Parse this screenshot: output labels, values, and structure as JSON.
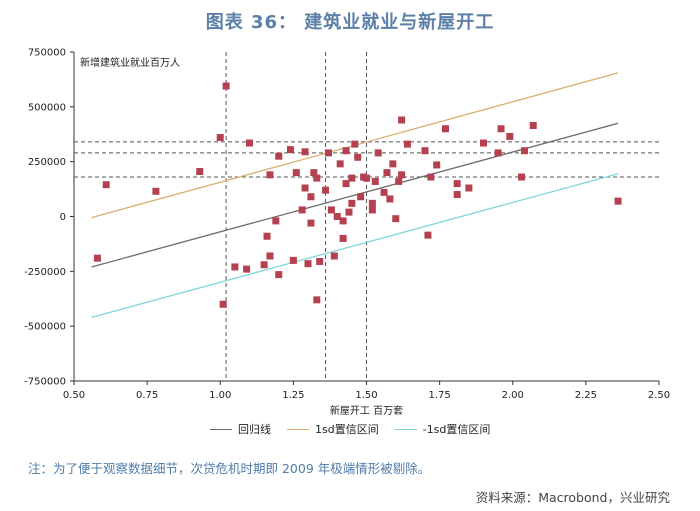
{
  "title": "图表 36：  建筑业就业与新屋开工",
  "note": "注：为了便于观察数据细节，次贷危机时期即 2009 年极端情形被剔除。",
  "source": "资料来源：Macrobond，兴业研究",
  "chart_data": {
    "type": "scatter",
    "title": "",
    "xlabel": "新屋开工 百万套",
    "ylabel": "新增建筑业就业百万人",
    "xlim": [
      0.5,
      2.5
    ],
    "ylim": [
      -750000,
      750000
    ],
    "xticks": [
      "0.50",
      "0.75",
      "1.00",
      "1.25",
      "1.50",
      "1.75",
      "2.00",
      "2.25",
      "2.50"
    ],
    "yticks": [
      "750000",
      "500000",
      "250000",
      "0",
      "-250000",
      "-500000",
      "-750000"
    ],
    "grid": false,
    "marker_color": "#b5404f",
    "lines": [
      {
        "name": "回归线",
        "color": "#6b6b6b",
        "x": [
          0.56,
          2.36
        ],
        "y": [
          -230000,
          425000
        ]
      },
      {
        "name": "1sd置信区间",
        "color": "#d9b070",
        "x": [
          0.56,
          2.36
        ],
        "y": [
          -5000,
          655000
        ]
      },
      {
        "name": "-1sd置信区间",
        "color": "#7fd6d9",
        "x": [
          0.56,
          2.36
        ],
        "y": [
          -460000,
          195000
        ]
      }
    ],
    "vlines": [
      1.02,
      1.36,
      1.5
    ],
    "hlines": [
      340000,
      290000,
      180000
    ],
    "points": [
      [
        0.58,
        -190000
      ],
      [
        0.61,
        145000
      ],
      [
        0.78,
        115000
      ],
      [
        0.93,
        205000
      ],
      [
        1.0,
        360000
      ],
      [
        1.01,
        -400000
      ],
      [
        1.02,
        595000
      ],
      [
        1.05,
        -230000
      ],
      [
        1.09,
        -240000
      ],
      [
        1.1,
        335000
      ],
      [
        1.15,
        -220000
      ],
      [
        1.16,
        -90000
      ],
      [
        1.17,
        190000
      ],
      [
        1.17,
        -180000
      ],
      [
        1.19,
        -20000
      ],
      [
        1.2,
        275000
      ],
      [
        1.2,
        -265000
      ],
      [
        1.24,
        305000
      ],
      [
        1.25,
        -200000
      ],
      [
        1.26,
        200000
      ],
      [
        1.28,
        30000
      ],
      [
        1.29,
        295000
      ],
      [
        1.29,
        130000
      ],
      [
        1.3,
        -215000
      ],
      [
        1.31,
        90000
      ],
      [
        1.31,
        -30000
      ],
      [
        1.32,
        200000
      ],
      [
        1.33,
        -380000
      ],
      [
        1.33,
        175000
      ],
      [
        1.34,
        -205000
      ],
      [
        1.36,
        120000
      ],
      [
        1.37,
        290000
      ],
      [
        1.38,
        30000
      ],
      [
        1.39,
        -180000
      ],
      [
        1.4,
        0
      ],
      [
        1.41,
        240000
      ],
      [
        1.42,
        -100000
      ],
      [
        1.42,
        -20000
      ],
      [
        1.43,
        150000
      ],
      [
        1.43,
        300000
      ],
      [
        1.44,
        20000
      ],
      [
        1.45,
        60000
      ],
      [
        1.45,
        175000
      ],
      [
        1.46,
        330000
      ],
      [
        1.47,
        270000
      ],
      [
        1.48,
        90000
      ],
      [
        1.49,
        180000
      ],
      [
        1.5,
        175000
      ],
      [
        1.52,
        30000
      ],
      [
        1.52,
        60000
      ],
      [
        1.53,
        160000
      ],
      [
        1.54,
        290000
      ],
      [
        1.56,
        110000
      ],
      [
        1.57,
        200000
      ],
      [
        1.58,
        80000
      ],
      [
        1.59,
        240000
      ],
      [
        1.6,
        -10000
      ],
      [
        1.61,
        160000
      ],
      [
        1.62,
        440000
      ],
      [
        1.62,
        190000
      ],
      [
        1.64,
        330000
      ],
      [
        1.7,
        300000
      ],
      [
        1.71,
        -85000
      ],
      [
        1.72,
        180000
      ],
      [
        1.74,
        235000
      ],
      [
        1.77,
        400000
      ],
      [
        1.81,
        100000
      ],
      [
        1.81,
        150000
      ],
      [
        1.85,
        130000
      ],
      [
        1.9,
        335000
      ],
      [
        1.95,
        290000
      ],
      [
        1.96,
        400000
      ],
      [
        1.99,
        365000
      ],
      [
        2.03,
        180000
      ],
      [
        2.04,
        300000
      ],
      [
        2.07,
        415000
      ],
      [
        2.36,
        70000
      ]
    ]
  }
}
